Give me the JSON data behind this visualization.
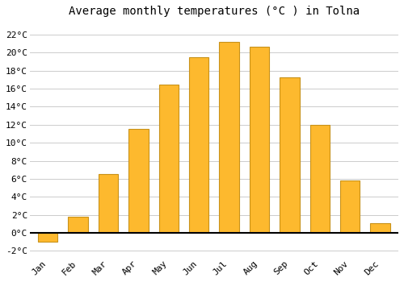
{
  "months": [
    "Jan",
    "Feb",
    "Mar",
    "Apr",
    "May",
    "Jun",
    "Jul",
    "Aug",
    "Sep",
    "Oct",
    "Nov",
    "Dec"
  ],
  "values": [
    -1.0,
    1.8,
    6.5,
    11.5,
    16.5,
    19.5,
    21.2,
    20.7,
    17.3,
    12.0,
    5.8,
    1.1
  ],
  "bar_color": "#FDB92E",
  "bar_edge_color": "#C8921A",
  "title": "Average monthly temperatures (°C ) in Tolna",
  "title_fontsize": 10,
  "ytick_labels": [
    "-2°C",
    "0°C",
    "2°C",
    "4°C",
    "6°C",
    "8°C",
    "10°C",
    "12°C",
    "14°C",
    "16°C",
    "18°C",
    "20°C",
    "22°C"
  ],
  "ytick_values": [
    -2,
    0,
    2,
    4,
    6,
    8,
    10,
    12,
    14,
    16,
    18,
    20,
    22
  ],
  "ylim": [
    -2.8,
    23.5
  ],
  "background_color": "#FFFFFF",
  "grid_color": "#CCCCCC",
  "bar_width": 0.65
}
